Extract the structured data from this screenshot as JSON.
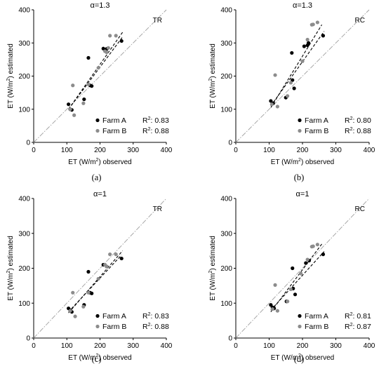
{
  "colors": {
    "farm_a": "#000000",
    "farm_b": "#8c8c8c",
    "one_to_one": "#a0a0a0"
  },
  "chart_data": [
    {
      "type": "scatter",
      "title": "α=1.3",
      "corner_label": "TR",
      "caption": "(a)",
      "xlabel_pre": "ET (W/m",
      "xlabel_sup": "2",
      "xlabel_post": ") observed",
      "ylabel_pre": "ET (W/m",
      "ylabel_sup": "2",
      "ylabel_post": ") estimated",
      "xlim": [
        0,
        400
      ],
      "ylim": [
        0,
        400
      ],
      "xticks": [
        0,
        100,
        200,
        300,
        400
      ],
      "yticks": [
        0,
        100,
        200,
        300,
        400
      ],
      "one_to_one_line": true,
      "series": [
        {
          "name": "Farm A",
          "r2": "0.83",
          "fit": [
            [
              105,
              100
            ],
            [
              268,
              318
            ]
          ],
          "points": [
            [
              105,
              115
            ],
            [
              110,
              100
            ],
            [
              115,
              98
            ],
            [
              152,
              130
            ],
            [
              165,
              255
            ],
            [
              170,
              172
            ],
            [
              175,
              170
            ],
            [
              210,
              283
            ],
            [
              220,
              282
            ],
            [
              265,
              306
            ]
          ]
        },
        {
          "name": "Farm B",
          "r2": "0.88",
          "fit": [
            [
              105,
              100
            ],
            [
              270,
              335
            ]
          ],
          "points": [
            [
              110,
              100
            ],
            [
              118,
              172
            ],
            [
              122,
              82
            ],
            [
              150,
              118
            ],
            [
              165,
              175
            ],
            [
              195,
              225
            ],
            [
              215,
              275
            ],
            [
              220,
              272
            ],
            [
              225,
              285
            ],
            [
              230,
              322
            ],
            [
              248,
              322
            ]
          ]
        }
      ]
    },
    {
      "type": "scatter",
      "title": "α=1.3",
      "corner_label": "RC",
      "caption": "(b)",
      "xlabel_pre": "ET (W/m",
      "xlabel_sup": "2",
      "xlabel_post": ") observed",
      "ylabel_pre": "ET (W/m",
      "ylabel_sup": "2",
      "ylabel_post": ") estimated",
      "xlim": [
        0,
        400
      ],
      "ylim": [
        0,
        400
      ],
      "xticks": [
        0,
        100,
        200,
        300,
        400
      ],
      "yticks": [
        0,
        100,
        200,
        300,
        400
      ],
      "one_to_one_line": true,
      "series": [
        {
          "name": "Farm A",
          "r2": "0.80",
          "fit": [
            [
              105,
              110
            ],
            [
              265,
              335
            ]
          ],
          "points": [
            [
              105,
              125
            ],
            [
              112,
              118
            ],
            [
              150,
              135
            ],
            [
              168,
              270
            ],
            [
              170,
              188
            ],
            [
              175,
              163
            ],
            [
              205,
              290
            ],
            [
              215,
              293
            ],
            [
              218,
              300
            ],
            [
              262,
              322
            ]
          ]
        },
        {
          "name": "Farm B",
          "r2": "0.88",
          "fit": [
            [
              105,
              105
            ],
            [
              258,
              355
            ]
          ],
          "points": [
            [
              108,
              115
            ],
            [
              118,
              203
            ],
            [
              125,
              108
            ],
            [
              155,
              140
            ],
            [
              165,
              180
            ],
            [
              200,
              245
            ],
            [
              215,
              310
            ],
            [
              228,
              355
            ],
            [
              232,
              356
            ],
            [
              245,
              362
            ]
          ]
        }
      ]
    },
    {
      "type": "scatter",
      "title": "α=1",
      "corner_label": "TR",
      "caption": "(c)",
      "xlabel_pre": "ET (W/m",
      "xlabel_sup": "2",
      "xlabel_post": ") observed",
      "ylabel_pre": "ET (W/m",
      "ylabel_sup": "2",
      "ylabel_post": ") estimated",
      "xlim": [
        0,
        400
      ],
      "ylim": [
        0,
        400
      ],
      "xticks": [
        0,
        100,
        200,
        300,
        400
      ],
      "yticks": [
        0,
        100,
        200,
        300,
        400
      ],
      "one_to_one_line": true,
      "series": [
        {
          "name": "Farm A",
          "r2": "0.83",
          "fit": [
            [
              105,
              75
            ],
            [
              265,
              238
            ]
          ],
          "points": [
            [
              105,
              85
            ],
            [
              110,
              80
            ],
            [
              115,
              75
            ],
            [
              152,
              95
            ],
            [
              165,
              190
            ],
            [
              170,
              130
            ],
            [
              175,
              128
            ],
            [
              210,
              210
            ],
            [
              220,
              205
            ],
            [
              265,
              228
            ]
          ]
        },
        {
          "name": "Farm B",
          "r2": "0.88",
          "fit": [
            [
              105,
              72
            ],
            [
              268,
              250
            ]
          ],
          "points": [
            [
              110,
              78
            ],
            [
              118,
              130
            ],
            [
              125,
              62
            ],
            [
              150,
              90
            ],
            [
              165,
              130
            ],
            [
              195,
              170
            ],
            [
              215,
              210
            ],
            [
              220,
              205
            ],
            [
              230,
              240
            ],
            [
              248,
              240
            ]
          ]
        }
      ]
    },
    {
      "type": "scatter",
      "title": "α=1",
      "corner_label": "RC",
      "caption": "(d)",
      "xlabel_pre": "ET (W/m",
      "xlabel_sup": "2",
      "xlabel_post": ") observed",
      "ylabel_pre": "ET (W/m",
      "ylabel_sup": "2",
      "ylabel_post": ") estimated",
      "xlim": [
        0,
        400
      ],
      "ylim": [
        0,
        400
      ],
      "xticks": [
        0,
        100,
        200,
        300,
        400
      ],
      "yticks": [
        0,
        100,
        200,
        300,
        400
      ],
      "one_to_one_line": true,
      "series": [
        {
          "name": "Farm A",
          "r2": "0.81",
          "fit": [
            [
              105,
              80
            ],
            [
              265,
              248
            ]
          ],
          "points": [
            [
              105,
              95
            ],
            [
              110,
              88
            ],
            [
              115,
              85
            ],
            [
              152,
              105
            ],
            [
              170,
              200
            ],
            [
              172,
              142
            ],
            [
              178,
              125
            ],
            [
              210,
              215
            ],
            [
              220,
              222
            ],
            [
              262,
              240
            ]
          ]
        },
        {
          "name": "Farm B",
          "r2": "0.87",
          "fit": [
            [
              105,
              75
            ],
            [
              260,
              272
            ]
          ],
          "points": [
            [
              110,
              83
            ],
            [
              118,
              152
            ],
            [
              125,
              78
            ],
            [
              155,
              105
            ],
            [
              165,
              140
            ],
            [
              195,
              185
            ],
            [
              215,
              225
            ],
            [
              228,
              262
            ],
            [
              232,
              263
            ],
            [
              245,
              268
            ]
          ]
        }
      ]
    }
  ]
}
